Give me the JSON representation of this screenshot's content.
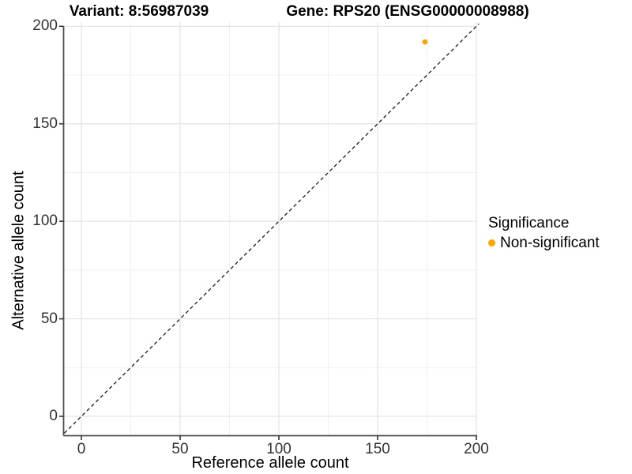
{
  "chart_data": {
    "type": "scatter",
    "title_left": "Variant: 8:56987039",
    "title_right": "Gene: RPS20 (ENSG00000008988)",
    "xlabel": "Reference allele count",
    "ylabel": "Alternative allele count",
    "x_ticks": [
      0,
      50,
      100,
      150,
      200
    ],
    "y_ticks": [
      0,
      50,
      100,
      150,
      200
    ],
    "x_minor_ticks": [
      25,
      75,
      125,
      175
    ],
    "y_minor_ticks": [
      25,
      75,
      125,
      175
    ],
    "xlim": [
      -9,
      201
    ],
    "ylim": [
      -10,
      212
    ],
    "grid": true,
    "identity_line": {
      "style": "dashed",
      "from": -8.6,
      "to": 201.3,
      "color": "#1a1a1a"
    },
    "points": [
      {
        "x": 174,
        "y": 192,
        "series": "Non-significant",
        "color": "#FFA500"
      }
    ],
    "legend": {
      "title": "Significance",
      "position": "right",
      "items": [
        {
          "label": "Non-significant",
          "color": "#FFA500"
        }
      ]
    },
    "colors": {
      "grid_major": "#e3e3e3",
      "grid_minor": "#efefef",
      "axis_line": "#4d4d4d",
      "tick_mark": "#333333"
    }
  }
}
